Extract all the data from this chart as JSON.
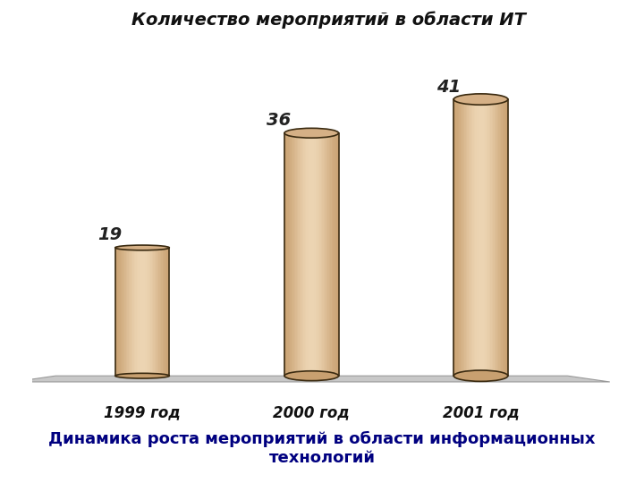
{
  "title": "Количество мероприятий в области ИТ",
  "subtitle": "Динамика роста мероприятий в области информационных\nтехнологий",
  "categories": [
    "1999 год",
    "2000 год",
    "2001 год"
  ],
  "values": [
    19,
    36,
    41
  ],
  "bar_color_main": "#DEBB96",
  "bar_color_light": "#EDD5B3",
  "bar_color_dark": "#C8A070",
  "bar_color_shadow": "#C9A87A",
  "bar_color_edge": "#3A2A10",
  "floor_color": "#C8C8C8",
  "floor_edge": "#999999",
  "background_color": "#FFFFFF",
  "title_fontsize": 14,
  "label_fontsize": 12,
  "value_fontsize": 14,
  "subtitle_fontsize": 13,
  "subtitle_color": "#000080",
  "bar_width": 0.32,
  "x_positions": [
    1,
    2,
    3
  ],
  "xlim": [
    0.35,
    3.85
  ],
  "ylim": [
    -3,
    50
  ]
}
